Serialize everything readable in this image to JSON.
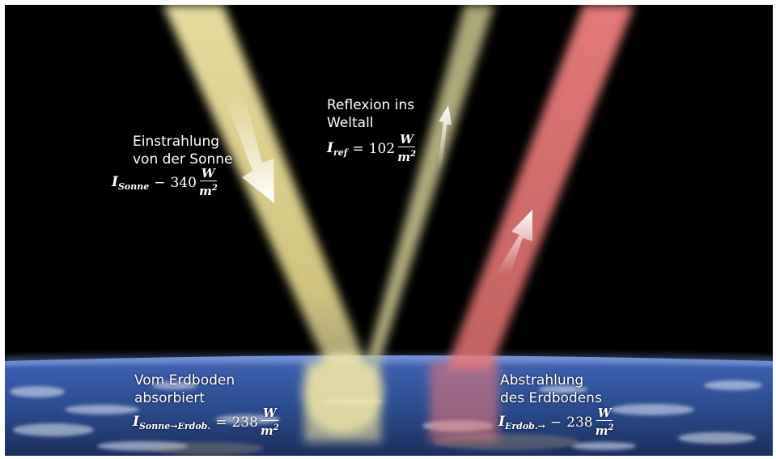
{
  "colors": {
    "space": "#000000",
    "sunbeam": "#f2e6a6",
    "reflect_beam": "#c9c48e",
    "earth_beam": "#f07a78",
    "earth_blue": "#3a5fb0"
  },
  "labels": {
    "einstrahlung": [
      "Einstrahlung",
      "von der Sonne"
    ],
    "reflexion": [
      "Reflexion ins",
      "Weltall"
    ],
    "absorbiert": [
      "Vom Erdboden",
      "absorbiert"
    ],
    "abstrahlung": [
      "Abstrahlung",
      "des Erdbodens"
    ]
  },
  "equations": {
    "sonne": {
      "symbol": "I",
      "subscript": "Sonne",
      "operator": "−",
      "value": "340",
      "numerator": "W",
      "denominator": "m",
      "exponent": "2"
    },
    "ref": {
      "symbol": "I",
      "subscript": "ref",
      "operator": "=",
      "value": "102",
      "numerator": "W",
      "denominator": "m",
      "exponent": "2"
    },
    "absorbiert": {
      "symbol": "I",
      "subscript": "Sonne→Erdob.",
      "operator": "=",
      "value": "238",
      "numerator": "W",
      "denominator": "m",
      "exponent": "2"
    },
    "abstrahlung": {
      "symbol": "I",
      "subscript": "Erdob.→",
      "operator": "−",
      "value": "238",
      "numerator": "W",
      "denominator": "m",
      "exponent": "2"
    }
  },
  "icons": [
    "arrow-down-icon",
    "arrow-up-icon",
    "arrow-up-icon"
  ]
}
